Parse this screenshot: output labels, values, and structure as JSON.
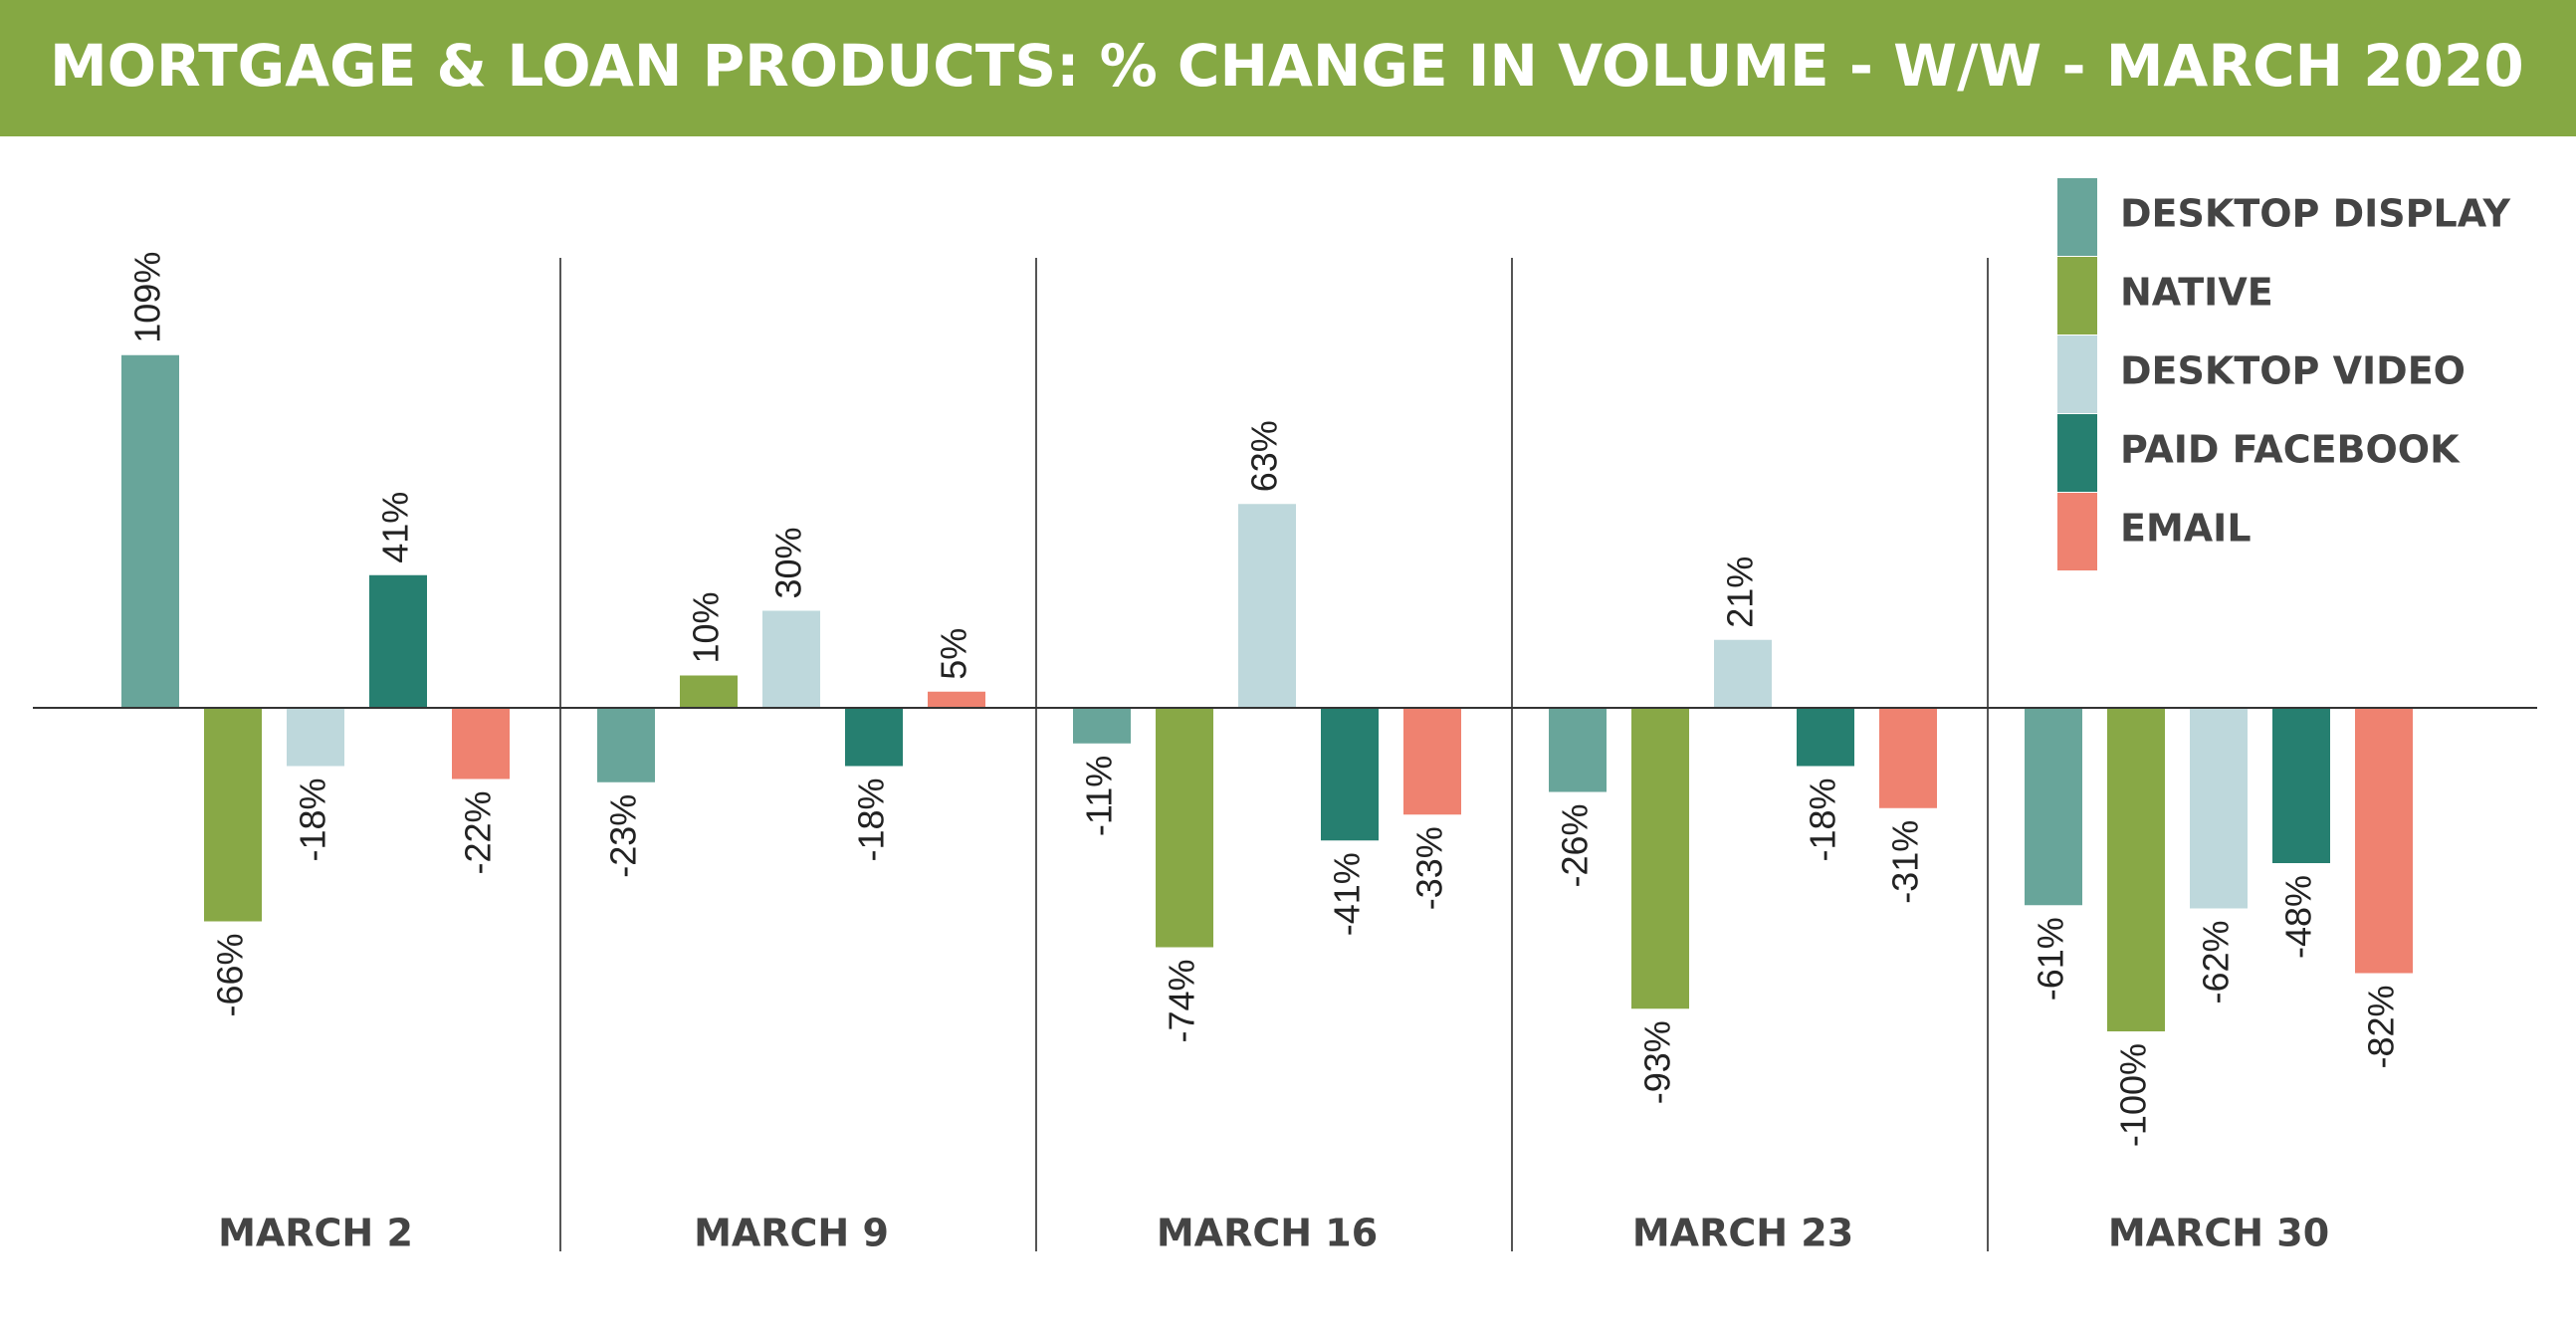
{
  "chart_data": {
    "type": "bar",
    "title": "MORTGAGE & LOAN PRODUCTS: % CHANGE IN VOLUME - W/W - MARCH 2020",
    "categories": [
      "MARCH 2",
      "MARCH 9",
      "MARCH 16",
      "MARCH 23",
      "MARCH 30"
    ],
    "legend": "upper right",
    "series": [
      {
        "name": "DESKTOP DISPLAY",
        "color": "#68a59a",
        "values": [
          109,
          -23,
          -11,
          -26,
          -61
        ],
        "value_labels": [
          "109%",
          "-23%",
          "-11%",
          "-26%",
          "-61%"
        ]
      },
      {
        "name": "NATIVE",
        "color": "#88a846",
        "values": [
          -66,
          10,
          -74,
          -93,
          -100
        ],
        "value_labels": [
          "-66%",
          "10%",
          "-74%",
          "-93%",
          "-100%"
        ]
      },
      {
        "name": "DESKTOP VIDEO",
        "color": "#bed8dc",
        "values": [
          -18,
          30,
          63,
          21,
          -62
        ],
        "value_labels": [
          "-18%",
          "30%",
          "63%",
          "21%",
          "-62%"
        ]
      },
      {
        "name": "PAID FACEBOOK",
        "color": "#267f70",
        "values": [
          41,
          -18,
          -41,
          -18,
          -48
        ],
        "value_labels": [
          "41%",
          "-18%",
          "-41%",
          "-18%",
          "-48%"
        ]
      },
      {
        "name": "EMAIL",
        "color": "#ef8270",
        "values": [
          -22,
          5,
          -33,
          -31,
          -82
        ],
        "value_labels": [
          "-22%",
          "5%",
          "-33%",
          "-31%",
          "-82%"
        ]
      }
    ]
  }
}
